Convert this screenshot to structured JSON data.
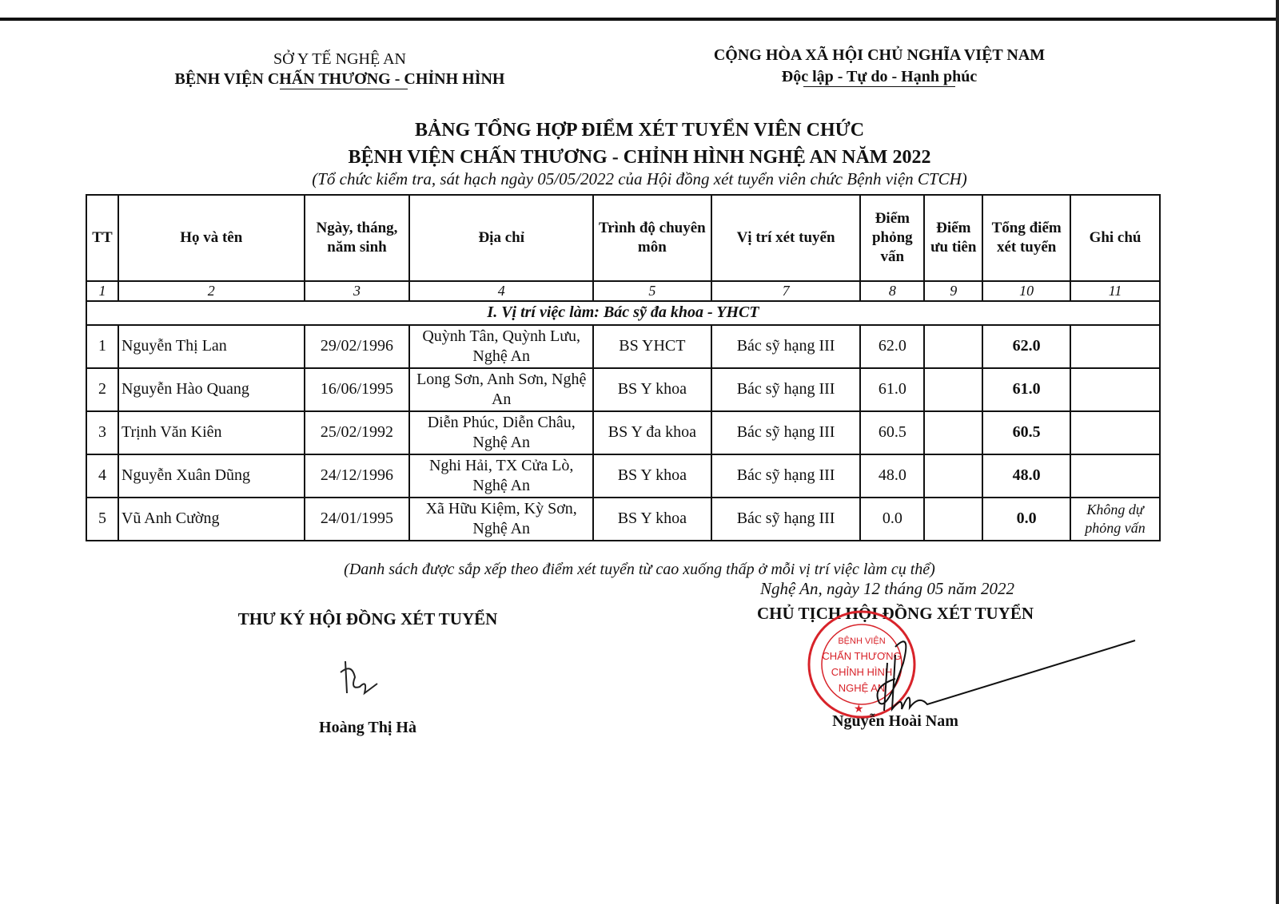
{
  "header_left": {
    "line1": "SỞ Y TẾ NGHỆ AN",
    "line2": "BỆNH VIỆN CHẤN THƯƠNG - CHỈNH HÌNH"
  },
  "header_right": {
    "line1": "CỘNG HÒA XÃ HỘI CHỦ NGHĨA VIỆT NAM",
    "line2": "Độc lập - Tự do - Hạnh phúc"
  },
  "title": {
    "line1": "BẢNG TỔNG HỢP ĐIỂM XÉT TUYỂN VIÊN CHỨC",
    "line2": "BỆNH VIỆN CHẤN THƯƠNG - CHỈNH HÌNH NGHỆ AN NĂM 2022",
    "subtitle": "(Tổ chức kiểm tra, sát hạch ngày 05/05/2022 của Hội đồng xét tuyển viên chức Bệnh viện CTCH)"
  },
  "table": {
    "headers": [
      "TT",
      "Họ và tên",
      "Ngày, tháng, năm sinh",
      "Địa chỉ",
      "Trình độ chuyên môn",
      "Vị trí xét tuyển",
      "Điểm phỏng vấn",
      "Điểm ưu tiên",
      "Tổng điểm xét tuyển",
      "Ghi chú"
    ],
    "column_numbers": [
      "1",
      "2",
      "3",
      "4",
      "5",
      "7",
      "8",
      "9",
      "10",
      "11"
    ],
    "section": "I. Vị trí việc làm: Bác sỹ đa khoa - YHCT",
    "rows": [
      {
        "tt": "1",
        "name": "Nguyễn Thị Lan",
        "dob": "29/02/1996",
        "address": "Quỳnh Tân, Quỳnh Lưu, Nghệ An",
        "qualification": "BS YHCT",
        "position": "Bác sỹ hạng III",
        "interview": "62.0",
        "priority": "",
        "total": "62.0",
        "note": ""
      },
      {
        "tt": "2",
        "name": "Nguyễn Hào Quang",
        "dob": "16/06/1995",
        "address": "Long Sơn, Anh Sơn, Nghệ An",
        "qualification": "BS Y khoa",
        "position": "Bác sỹ hạng III",
        "interview": "61.0",
        "priority": "",
        "total": "61.0",
        "note": ""
      },
      {
        "tt": "3",
        "name": "Trịnh Văn Kiên",
        "dob": "25/02/1992",
        "address": "Diễn Phúc, Diễn Châu, Nghệ An",
        "qualification": "BS Y đa khoa",
        "position": "Bác sỹ hạng III",
        "interview": "60.5",
        "priority": "",
        "total": "60.5",
        "note": ""
      },
      {
        "tt": "4",
        "name": "Nguyễn Xuân Dũng",
        "dob": "24/12/1996",
        "address": "Nghi Hải, TX Cửa Lò, Nghệ An",
        "qualification": "BS Y khoa",
        "position": "Bác sỹ hạng III",
        "interview": "48.0",
        "priority": "",
        "total": "48.0",
        "note": ""
      },
      {
        "tt": "5",
        "name": "Vũ Anh Cường",
        "dob": "24/01/1995",
        "address": "Xã Hữu Kiệm, Kỳ Sơn, Nghệ An",
        "qualification": "BS Y khoa",
        "position": "Bác sỹ hạng III",
        "interview": "0.0",
        "priority": "",
        "total": "0.0",
        "note": "Không dự phỏng vấn"
      }
    ]
  },
  "footnote": "(Danh sách được sắp xếp theo điểm xét tuyển từ cao xuống thấp ở mỗi vị trí việc làm cụ thể)",
  "date_line": "Nghệ An, ngày 12 tháng 05 năm 2022",
  "signer_left": {
    "role": "THƯ KÝ HỘI ĐỒNG XÉT TUYỂN",
    "name": "Hoàng Thị Hà"
  },
  "signer_right": {
    "role": "CHỦ TỊCH HỘI ĐỒNG XÉT TUYỂN",
    "name": "Nguyễn Hoài Nam"
  },
  "stamp": {
    "text": [
      "BỆNH VIỆN",
      "CHẤN THƯƠNG",
      "CHỈNH HÌNH",
      "NGHỆ AN"
    ],
    "color": "#d8232a"
  }
}
